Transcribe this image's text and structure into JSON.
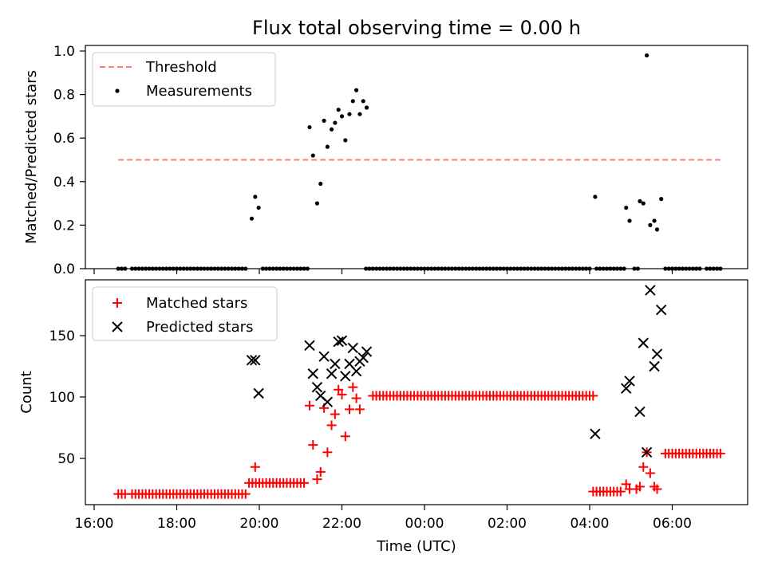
{
  "title": "Flux total observing time = 0.00 h",
  "xlabel": "Time (UTC)",
  "x_ticks": [
    "16:00",
    "18:00",
    "20:00",
    "22:00",
    "00:00",
    "02:00",
    "04:00",
    "06:00"
  ],
  "chart_data": [
    {
      "type": "scatter",
      "ylabel": "Matched/Predicted stars",
      "xlim": [
        "16:00",
        "07:30"
      ],
      "ylim": [
        0,
        1.02
      ],
      "y_ticks": [
        "0.0",
        "0.2",
        "0.4",
        "0.6",
        "0.8",
        "1.0"
      ],
      "legend": {
        "position": "top-left",
        "threshold_label": "Threshold",
        "measurements_label": "Measurements"
      },
      "threshold": {
        "value": 0.5,
        "from": "16:35",
        "to": "07:10",
        "color": "#ff7f7f"
      },
      "measurements": {
        "color": "#000000",
        "zero_runs": [
          {
            "from": "16:35",
            "to": "16:45"
          },
          {
            "from": "16:55",
            "to": "19:40"
          },
          {
            "from": "20:05",
            "to": "21:10"
          },
          {
            "from": "22:35",
            "to": "04:00"
          },
          {
            "from": "04:10",
            "to": "04:50"
          },
          {
            "from": "05:05",
            "to": "05:10"
          },
          {
            "from": "05:50",
            "to": "06:40"
          },
          {
            "from": "06:50",
            "to": "07:10"
          }
        ],
        "points": [
          [
            "19:49",
            0.23
          ],
          [
            "19:54",
            0.33
          ],
          [
            "19:59",
            0.28
          ],
          [
            "21:13",
            0.65
          ],
          [
            "21:18",
            0.52
          ],
          [
            "21:24",
            0.3
          ],
          [
            "21:29",
            0.39
          ],
          [
            "21:34",
            0.68
          ],
          [
            "21:39",
            0.56
          ],
          [
            "21:45",
            0.64
          ],
          [
            "21:50",
            0.67
          ],
          [
            "21:55",
            0.73
          ],
          [
            "22:00",
            0.7
          ],
          [
            "22:05",
            0.59
          ],
          [
            "22:11",
            0.71
          ],
          [
            "22:16",
            0.77
          ],
          [
            "22:21",
            0.82
          ],
          [
            "22:26",
            0.71
          ],
          [
            "22:31",
            0.77
          ],
          [
            "22:36",
            0.74
          ],
          [
            "04:08",
            0.33
          ],
          [
            "04:53",
            0.28
          ],
          [
            "04:58",
            0.22
          ],
          [
            "05:13",
            0.31
          ],
          [
            "05:18",
            0.3
          ],
          [
            "05:23",
            0.98
          ],
          [
            "05:28",
            0.2
          ],
          [
            "05:34",
            0.22
          ],
          [
            "05:38",
            0.18
          ],
          [
            "05:44",
            0.32
          ]
        ]
      }
    },
    {
      "type": "scatter",
      "ylabel": "Count",
      "xlim": [
        "16:00",
        "07:30"
      ],
      "ylim": [
        13,
        190
      ],
      "y_ticks": [
        "50",
        "100",
        "150"
      ],
      "legend": {
        "position": "top-left"
      },
      "series": [
        {
          "name": "Matched stars",
          "marker": "+",
          "color": "#ff0000",
          "runs": [
            {
              "from": "16:35",
              "to": "16:45",
              "value": 21
            },
            {
              "from": "16:55",
              "to": "19:40",
              "value": 21
            },
            {
              "from": "19:45",
              "to": "21:05",
              "value": 30
            },
            {
              "from": "22:45",
              "to": "04:05",
              "value": 101
            },
            {
              "from": "04:05",
              "to": "04:45",
              "value": 23
            },
            {
              "from": "05:50",
              "to": "07:10",
              "value": 54
            }
          ],
          "points": [
            [
              "19:54",
              43
            ],
            [
              "21:13",
              93
            ],
            [
              "21:18",
              61
            ],
            [
              "21:24",
              33
            ],
            [
              "21:29",
              39
            ],
            [
              "21:34",
              91
            ],
            [
              "21:39",
              55
            ],
            [
              "21:45",
              77
            ],
            [
              "21:50",
              86
            ],
            [
              "21:55",
              106
            ],
            [
              "22:00",
              102
            ],
            [
              "22:05",
              68
            ],
            [
              "22:11",
              90
            ],
            [
              "22:16",
              108
            ],
            [
              "22:21",
              99
            ],
            [
              "22:26",
              90
            ],
            [
              "04:53",
              29
            ],
            [
              "04:58",
              25
            ],
            [
              "05:08",
              25
            ],
            [
              "05:13",
              27
            ],
            [
              "05:18",
              43
            ],
            [
              "05:23",
              55
            ],
            [
              "05:28",
              38
            ],
            [
              "05:34",
              27
            ],
            [
              "05:38",
              25
            ]
          ]
        },
        {
          "name": "Predicted stars",
          "marker": "x",
          "color": "#000000",
          "points": [
            [
              "19:49",
              130
            ],
            [
              "19:54",
              130
            ],
            [
              "19:59",
              103
            ],
            [
              "21:13",
              142
            ],
            [
              "21:18",
              119
            ],
            [
              "21:24",
              108
            ],
            [
              "21:29",
              101
            ],
            [
              "21:34",
              133
            ],
            [
              "21:39",
              96
            ],
            [
              "21:45",
              119
            ],
            [
              "21:50",
              127
            ],
            [
              "21:55",
              145
            ],
            [
              "22:00",
              146
            ],
            [
              "22:05",
              117
            ],
            [
              "22:11",
              127
            ],
            [
              "22:16",
              140
            ],
            [
              "22:21",
              121
            ],
            [
              "22:26",
              129
            ],
            [
              "22:31",
              132
            ],
            [
              "22:36",
              137
            ],
            [
              "04:08",
              70
            ],
            [
              "04:53",
              107
            ],
            [
              "04:58",
              113
            ],
            [
              "05:13",
              88
            ],
            [
              "05:18",
              144
            ],
            [
              "05:23",
              55
            ],
            [
              "05:28",
              187
            ],
            [
              "05:34",
              125
            ],
            [
              "05:38",
              135
            ],
            [
              "05:44",
              171
            ]
          ]
        }
      ]
    }
  ]
}
